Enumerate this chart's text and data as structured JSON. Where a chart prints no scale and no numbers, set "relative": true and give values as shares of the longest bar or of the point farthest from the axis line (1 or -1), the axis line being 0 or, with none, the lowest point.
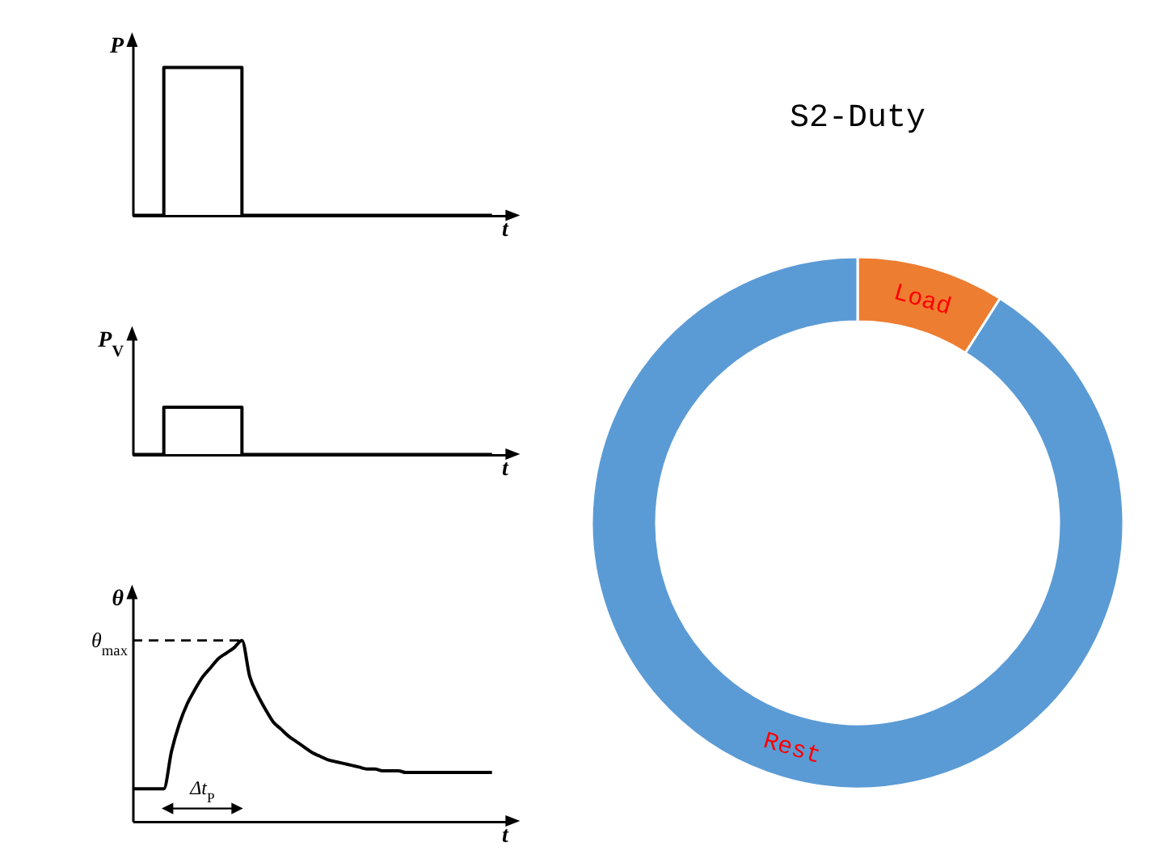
{
  "chart_data": [
    {
      "type": "step",
      "ylabel": "P",
      "xlabel": "t",
      "relative": true,
      "tick_labels": false,
      "color": "#000000",
      "categories": [
        null,
        null,
        null,
        null,
        null,
        null,
        null,
        null,
        null,
        null,
        null,
        null,
        null,
        null,
        null,
        null,
        null,
        null,
        null,
        null,
        null,
        null,
        null,
        null,
        null,
        null,
        null,
        null,
        null,
        null,
        null,
        null,
        null,
        null,
        null,
        null,
        null,
        null,
        null,
        null,
        null,
        null,
        null,
        null,
        null,
        null,
        null
      ],
      "values": [
        0,
        0,
        0,
        0,
        1,
        1,
        1,
        1,
        1,
        1,
        1,
        1,
        1,
        1,
        0,
        0,
        0,
        0,
        0,
        0,
        0,
        0,
        0,
        0,
        0,
        0,
        0,
        0,
        0,
        0,
        0,
        0,
        0,
        0,
        0,
        0,
        0,
        0,
        0,
        0,
        0,
        0,
        0,
        0,
        0,
        0,
        0
      ]
    },
    {
      "type": "step",
      "ylabel": "P$_{V}$",
      "xlabel": "t",
      "relative": true,
      "tick_labels": false,
      "color": "#000000",
      "categories": [
        null,
        null,
        null,
        null,
        null,
        null,
        null,
        null,
        null,
        null,
        null,
        null,
        null,
        null,
        null,
        null,
        null,
        null,
        null,
        null,
        null,
        null,
        null,
        null,
        null,
        null,
        null,
        null,
        null,
        null,
        null,
        null,
        null,
        null,
        null,
        null,
        null,
        null,
        null,
        null,
        null,
        null,
        null,
        null,
        null,
        null,
        null
      ],
      "values": [
        0,
        0,
        0,
        0,
        1,
        1,
        1,
        1,
        1,
        1,
        1,
        1,
        1,
        1,
        0,
        0,
        0,
        0,
        0,
        0,
        0,
        0,
        0,
        0,
        0,
        0,
        0,
        0,
        0,
        0,
        0,
        0,
        0,
        0,
        0,
        0,
        0,
        0,
        0,
        0,
        0,
        0,
        0,
        0,
        0,
        0,
        0
      ]
    },
    {
      "type": "line",
      "ylabel": "θ",
      "xlabel": "t",
      "relative": true,
      "tick_labels": false,
      "color": "#000000",
      "categories": [
        null,
        null,
        null,
        null,
        null,
        null,
        null,
        null,
        null,
        null,
        null,
        null,
        null,
        null,
        null,
        null,
        null,
        null,
        null,
        null,
        null,
        null,
        null,
        null,
        null,
        null,
        null,
        null,
        null,
        null,
        null,
        null,
        null,
        null,
        null,
        null,
        null,
        null,
        null,
        null,
        null,
        null,
        null,
        null,
        null,
        null,
        null
      ],
      "values": [
        0.18,
        0.18,
        0.18,
        0.18,
        0.18,
        0.39,
        0.54,
        0.65,
        0.73,
        0.8,
        0.85,
        0.9,
        0.93,
        0.96,
        1,
        0.8,
        0.7,
        0.62,
        0.55,
        0.51,
        0.47,
        0.44,
        0.41,
        0.38,
        0.36,
        0.34,
        0.33,
        0.32,
        0.31,
        0.3,
        0.29,
        0.29,
        0.28,
        0.28,
        0.28,
        0.27,
        0.27,
        0.27,
        0.27,
        0.27,
        0.27,
        0.27,
        0.27,
        0.27,
        0.27,
        0.27,
        0.27
      ],
      "ref_lines": [
        {
          "axis": "y",
          "value": 1,
          "label": "θ$_{max}$",
          "line_style": "dashed"
        }
      ],
      "annotations": [
        "Δt$_{P}$"
      ]
    },
    {
      "type": "donut",
      "title": "S2-Duty",
      "categories": [
        "Load",
        "Rest"
      ],
      "values": [
        9,
        91
      ],
      "colors": [
        "#ed7d31",
        "#5b9bd5"
      ]
    }
  ]
}
